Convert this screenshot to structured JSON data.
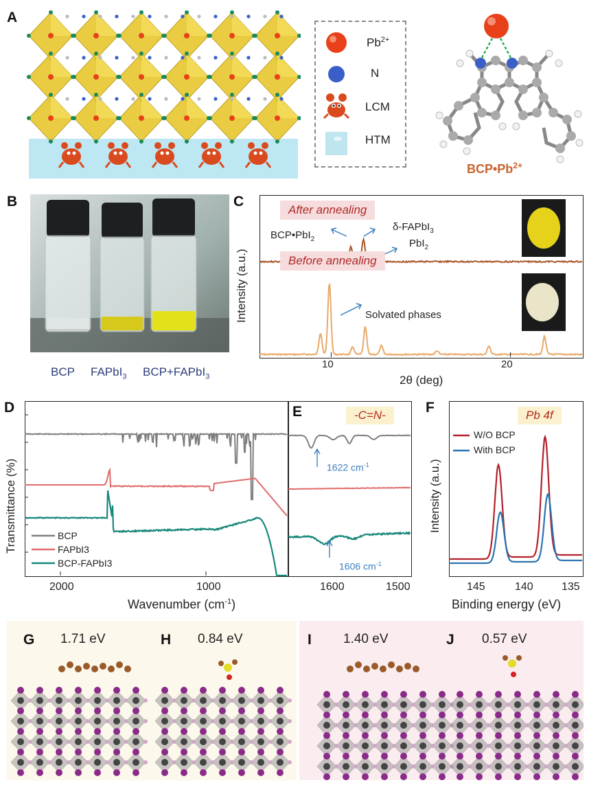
{
  "panels": {
    "A": {
      "label": "A",
      "legend": [
        {
          "label": "Pb",
          "sup": "2+",
          "color": "#e8411a"
        },
        {
          "label": "N",
          "sup": "",
          "color": "#3a5fc8"
        },
        {
          "label": "LCM",
          "sup": "",
          "color": "#d94a1f"
        },
        {
          "label": "HTM",
          "sup": "",
          "color": "#bfe6ef"
        }
      ],
      "complex_label": "BCP•Pb",
      "complex_sup": "2+"
    },
    "B": {
      "label": "B",
      "vials": [
        "BCP",
        "FAPbI",
        "BCP+FAPbI"
      ],
      "vial_sub": "3"
    },
    "C": {
      "label": "C",
      "after_label": "After annealing",
      "before_label": "Before annealing",
      "ann_bcp": "BCP•PbI",
      "ann_delta": "δ-FAPbI",
      "ann_pbi2": "PbI",
      "ann_solvated": "Solvated phases",
      "ylabel": "Intensity (a.u.)",
      "xlabel": "2θ (deg)",
      "xticks": [
        "10",
        "20"
      ]
    },
    "D": {
      "label": "D",
      "ylabel": "Transmittance (%)",
      "xlabel": "Wavenumber (cm",
      "xlabel_sup": "-1",
      "xlabel_end": ")",
      "xticks": [
        "2000",
        "1000"
      ],
      "legend": [
        "BCP",
        "FAPbI3",
        "BCP-FAPbI3"
      ]
    },
    "E": {
      "label": "E",
      "tag": "-C=N-",
      "ann1": "1622 cm",
      "ann2": "1606 cm",
      "ann_sup": "-1",
      "xticks": [
        "1600",
        "1500"
      ]
    },
    "F": {
      "label": "F",
      "tag": "Pb 4f",
      "ylabel": "Intensity (a.u.)",
      "xlabel": "Binding energy (eV)",
      "legend": [
        "W/O BCP",
        "With BCP"
      ],
      "xticks": [
        "145",
        "140",
        "135"
      ]
    },
    "G": {
      "label": "G",
      "energy": "1.71 eV"
    },
    "H": {
      "label": "H",
      "energy": "0.84 eV"
    },
    "I": {
      "label": "I",
      "energy": "1.40 eV"
    },
    "J": {
      "label": "J",
      "energy": "0.57 eV"
    }
  },
  "colors": {
    "bcp": "#7f7f7f",
    "fapbi3": "#e06a6a",
    "bcp_fapbi3": "#17877a",
    "after_trace": "#a9562a",
    "before_trace": "#e9a867",
    "wo_bcp": "#b3202a",
    "with_bcp": "#2a72b0",
    "lead": "#e8411a",
    "nitrogen": "#3a5fc8"
  },
  "chart_data": [
    {
      "type": "line",
      "panel": "C",
      "xlabel": "2θ (deg)",
      "ylabel": "Intensity (a.u.)",
      "xlim": [
        6,
        24
      ],
      "series": [
        {
          "name": "After annealing",
          "peaks": [
            [
              11.1,
              0.55
            ],
            [
              11.8,
              0.8
            ],
            [
              12.7,
              0.35
            ]
          ]
        },
        {
          "name": "Before annealing",
          "peaks": [
            [
              9.4,
              0.3
            ],
            [
              9.9,
              1.0
            ],
            [
              11.2,
              0.1
            ],
            [
              11.9,
              0.38
            ],
            [
              12.8,
              0.12
            ],
            [
              15.9,
              0.05
            ],
            [
              18.8,
              0.12
            ],
            [
              21.9,
              0.25
            ]
          ]
        }
      ]
    },
    {
      "type": "line",
      "panel": "D",
      "xlabel": "Wavenumber (cm-1)",
      "ylabel": "Transmittance (%)",
      "xlim": [
        2300,
        500
      ],
      "series": [
        {
          "name": "BCP"
        },
        {
          "name": "FAPbI3"
        },
        {
          "name": "BCP-FAPbI3"
        }
      ]
    },
    {
      "type": "line",
      "panel": "E",
      "xlim": [
        1650,
        1500
      ],
      "series": [
        {
          "name": "BCP",
          "dip": 1622
        },
        {
          "name": "FAPbI3"
        },
        {
          "name": "BCP-FAPbI3",
          "dip": 1606
        }
      ]
    },
    {
      "type": "line",
      "panel": "F",
      "xlabel": "Binding energy (eV)",
      "ylabel": "Intensity (a.u.)",
      "xlim": [
        148,
        134
      ],
      "series": [
        {
          "name": "W/O BCP",
          "peaks": [
            [
              142.8,
              0.78
            ],
            [
              137.9,
              1.0
            ]
          ]
        },
        {
          "name": "With BCP",
          "peaks": [
            [
              142.6,
              0.42
            ],
            [
              137.6,
              0.56
            ]
          ]
        }
      ]
    }
  ]
}
